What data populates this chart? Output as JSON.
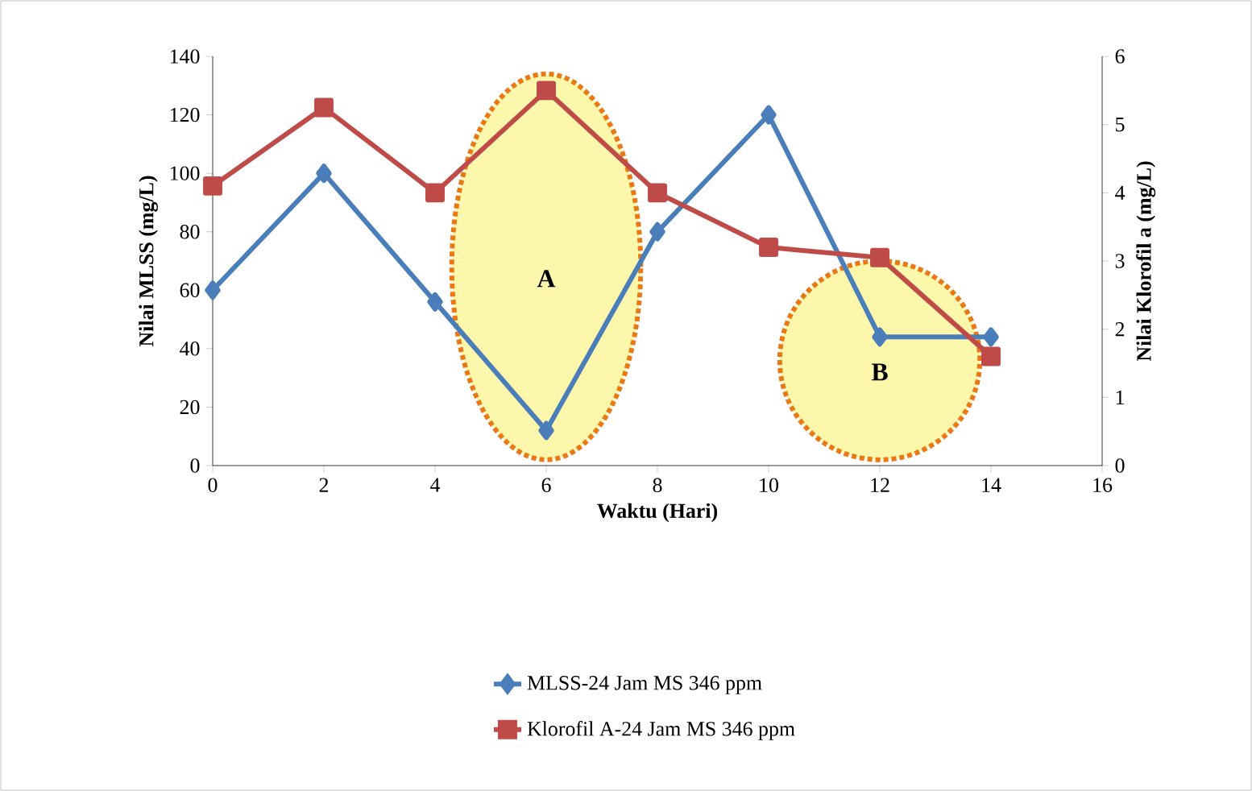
{
  "chart_data": {
    "type": "line",
    "xlabel": "Waktu (Hari)",
    "ylabel": "Nilai MLSS (mg/L)",
    "y2label": "Nilai Klorofil a (mg/L)",
    "x": [
      0,
      2,
      4,
      6,
      8,
      10,
      12,
      14
    ],
    "xlim": [
      0,
      16
    ],
    "xticks": [
      0,
      2,
      4,
      6,
      8,
      10,
      12,
      14,
      16
    ],
    "ylim": [
      0,
      140
    ],
    "yticks": [
      0,
      20,
      40,
      60,
      80,
      100,
      120,
      140
    ],
    "y2lim": [
      0,
      6
    ],
    "y2ticks": [
      0,
      1,
      2,
      3,
      4,
      5,
      6
    ],
    "series": [
      {
        "name": "MLSS-24 Jam MS 346 ppm",
        "color": "#4a7ebb",
        "marker": "diamond",
        "values": [
          60,
          100,
          56,
          12,
          80,
          120,
          44,
          44
        ]
      },
      {
        "name": "Klorofil A-24 Jam MS 346 ppm",
        "color": "#be4b48",
        "marker": "square",
        "axis": "y2",
        "values": [
          4.1,
          5.25,
          4.0,
          5.5,
          4.0,
          3.2,
          3.05,
          1.6
        ]
      }
    ],
    "annotations": [
      "A",
      "B"
    ],
    "legend": "bottom",
    "grid": false
  }
}
